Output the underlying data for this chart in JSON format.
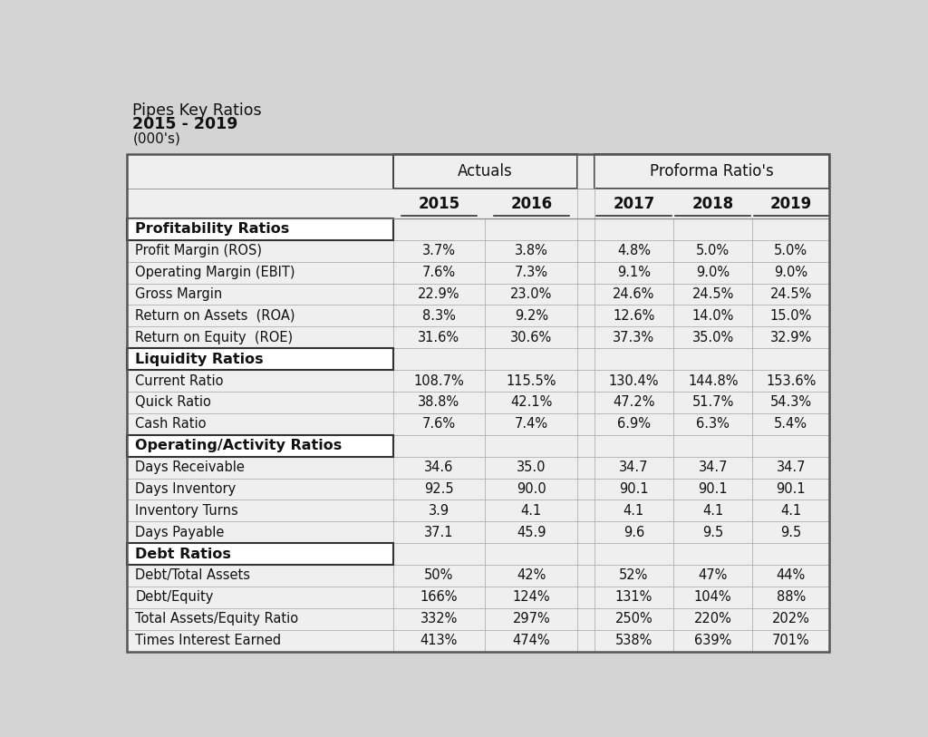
{
  "title_line1": "Pipes Key Ratios",
  "title_line2": "2015 - 2019",
  "title_line3": "(000's)",
  "header_actuals": "Actuals",
  "header_proforma": "Proforma Ratio's",
  "col_years": [
    "2015",
    "2016",
    "2017",
    "2018",
    "2019"
  ],
  "bg_color": "#d4d4d4",
  "table_bg": "#efefef",
  "white": "#ffffff",
  "rows": [
    {
      "label": "Profitability Ratios",
      "is_section": true,
      "values": [
        "",
        "",
        "",
        "",
        ""
      ]
    },
    {
      "label": "Profit Margin (ROS)",
      "is_section": false,
      "values": [
        "3.7%",
        "3.8%",
        "4.8%",
        "5.0%",
        "5.0%"
      ]
    },
    {
      "label": "Operating Margin (EBIT)",
      "is_section": false,
      "values": [
        "7.6%",
        "7.3%",
        "9.1%",
        "9.0%",
        "9.0%"
      ]
    },
    {
      "label": "Gross Margin",
      "is_section": false,
      "values": [
        "22.9%",
        "23.0%",
        "24.6%",
        "24.5%",
        "24.5%"
      ]
    },
    {
      "label": "Return on Assets  (ROA)",
      "is_section": false,
      "values": [
        "8.3%",
        "9.2%",
        "12.6%",
        "14.0%",
        "15.0%"
      ]
    },
    {
      "label": "Return on Equity  (ROE)",
      "is_section": false,
      "values": [
        "31.6%",
        "30.6%",
        "37.3%",
        "35.0%",
        "32.9%"
      ]
    },
    {
      "label": "Liquidity Ratios",
      "is_section": true,
      "values": [
        "",
        "",
        "",
        "",
        ""
      ]
    },
    {
      "label": "Current Ratio",
      "is_section": false,
      "values": [
        "108.7%",
        "115.5%",
        "130.4%",
        "144.8%",
        "153.6%"
      ]
    },
    {
      "label": "Quick Ratio",
      "is_section": false,
      "values": [
        "38.8%",
        "42.1%",
        "47.2%",
        "51.7%",
        "54.3%"
      ]
    },
    {
      "label": "Cash Ratio",
      "is_section": false,
      "values": [
        "7.6%",
        "7.4%",
        "6.9%",
        "6.3%",
        "5.4%"
      ]
    },
    {
      "label": "Operating/Activity Ratios",
      "is_section": true,
      "values": [
        "",
        "",
        "",
        "",
        ""
      ]
    },
    {
      "label": "Days Receivable",
      "is_section": false,
      "values": [
        "34.6",
        "35.0",
        "34.7",
        "34.7",
        "34.7"
      ]
    },
    {
      "label": "Days Inventory",
      "is_section": false,
      "values": [
        "92.5",
        "90.0",
        "90.1",
        "90.1",
        "90.1"
      ]
    },
    {
      "label": "Inventory Turns",
      "is_section": false,
      "values": [
        "3.9",
        "4.1",
        "4.1",
        "4.1",
        "4.1"
      ]
    },
    {
      "label": "Days Payable",
      "is_section": false,
      "values": [
        "37.1",
        "45.9",
        "9.6",
        "9.5",
        "9.5"
      ]
    },
    {
      "label": "Debt Ratios",
      "is_section": true,
      "values": [
        "",
        "",
        "",
        "",
        ""
      ]
    },
    {
      "label": "Debt/Total Assets",
      "is_section": false,
      "values": [
        "50%",
        "42%",
        "52%",
        "47%",
        "44%"
      ]
    },
    {
      "label": "Debt/Equity",
      "is_section": false,
      "values": [
        "166%",
        "124%",
        "131%",
        "104%",
        "88%"
      ]
    },
    {
      "label": "Total Assets/Equity Ratio",
      "is_section": false,
      "values": [
        "332%",
        "297%",
        "250%",
        "220%",
        "202%"
      ]
    },
    {
      "label": "Times Interest Earned",
      "is_section": false,
      "values": [
        "413%",
        "474%",
        "538%",
        "639%",
        "701%"
      ]
    }
  ]
}
